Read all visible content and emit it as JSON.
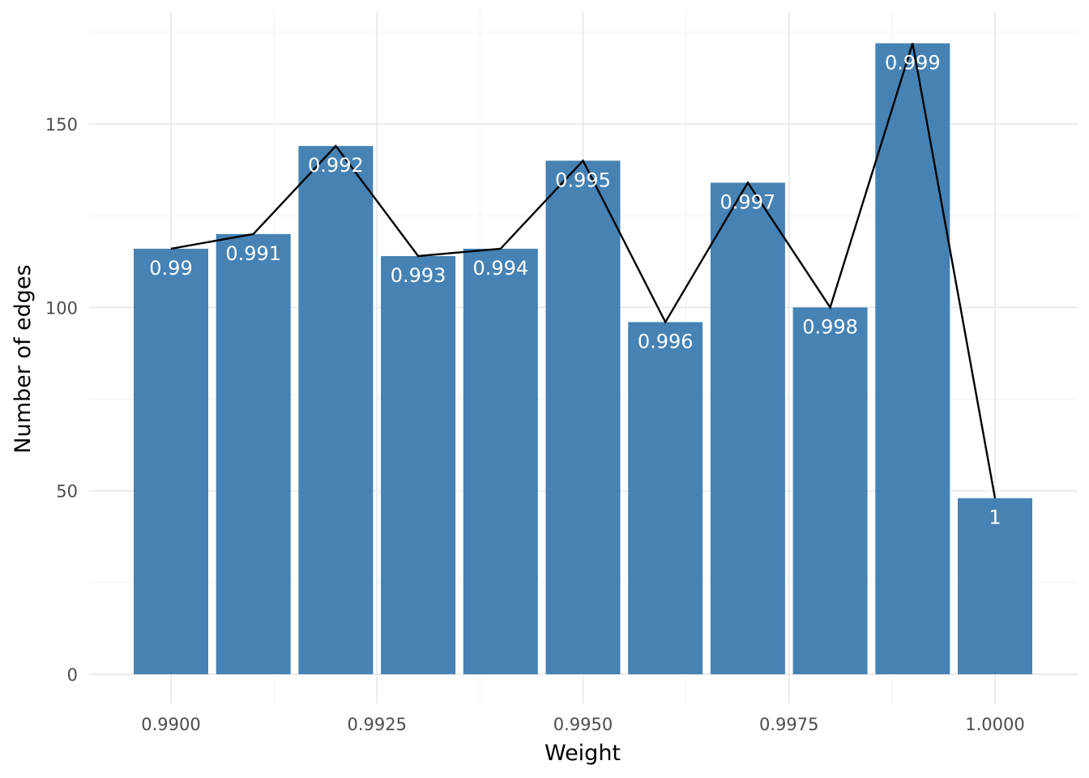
{
  "chart_data": {
    "type": "bar",
    "title": "",
    "xlabel": "Weight",
    "ylabel": "Number of edges",
    "x": [
      0.99,
      0.991,
      0.992,
      0.993,
      0.994,
      0.995,
      0.996,
      0.997,
      0.998,
      0.999,
      1.0
    ],
    "values": [
      116,
      120,
      144,
      114,
      116,
      140,
      96,
      134,
      100,
      172,
      48
    ],
    "bar_labels": [
      "0.99",
      "0.991",
      "0.992",
      "0.993",
      "0.994",
      "0.995",
      "0.996",
      "0.997",
      "0.998",
      "0.999",
      "1"
    ],
    "overlay": {
      "type": "line",
      "values": [
        116,
        120,
        144,
        114,
        116,
        140,
        96,
        134,
        100,
        172,
        48
      ]
    },
    "xlim": [
      0.9895,
      1.0005
    ],
    "ylim": [
      0,
      180
    ],
    "x_ticks": [
      0.99,
      0.9925,
      0.995,
      0.9975,
      1.0
    ],
    "x_tick_labels": [
      "0.9900",
      "0.9925",
      "0.9950",
      "0.9975",
      "1.0000"
    ],
    "y_ticks": [
      0,
      50,
      100,
      150
    ],
    "y_tick_labels": [
      "0",
      "50",
      "100",
      "150"
    ],
    "grid": true,
    "legend": "none",
    "bar_color": "#4682b4",
    "line_color": "#000000"
  }
}
